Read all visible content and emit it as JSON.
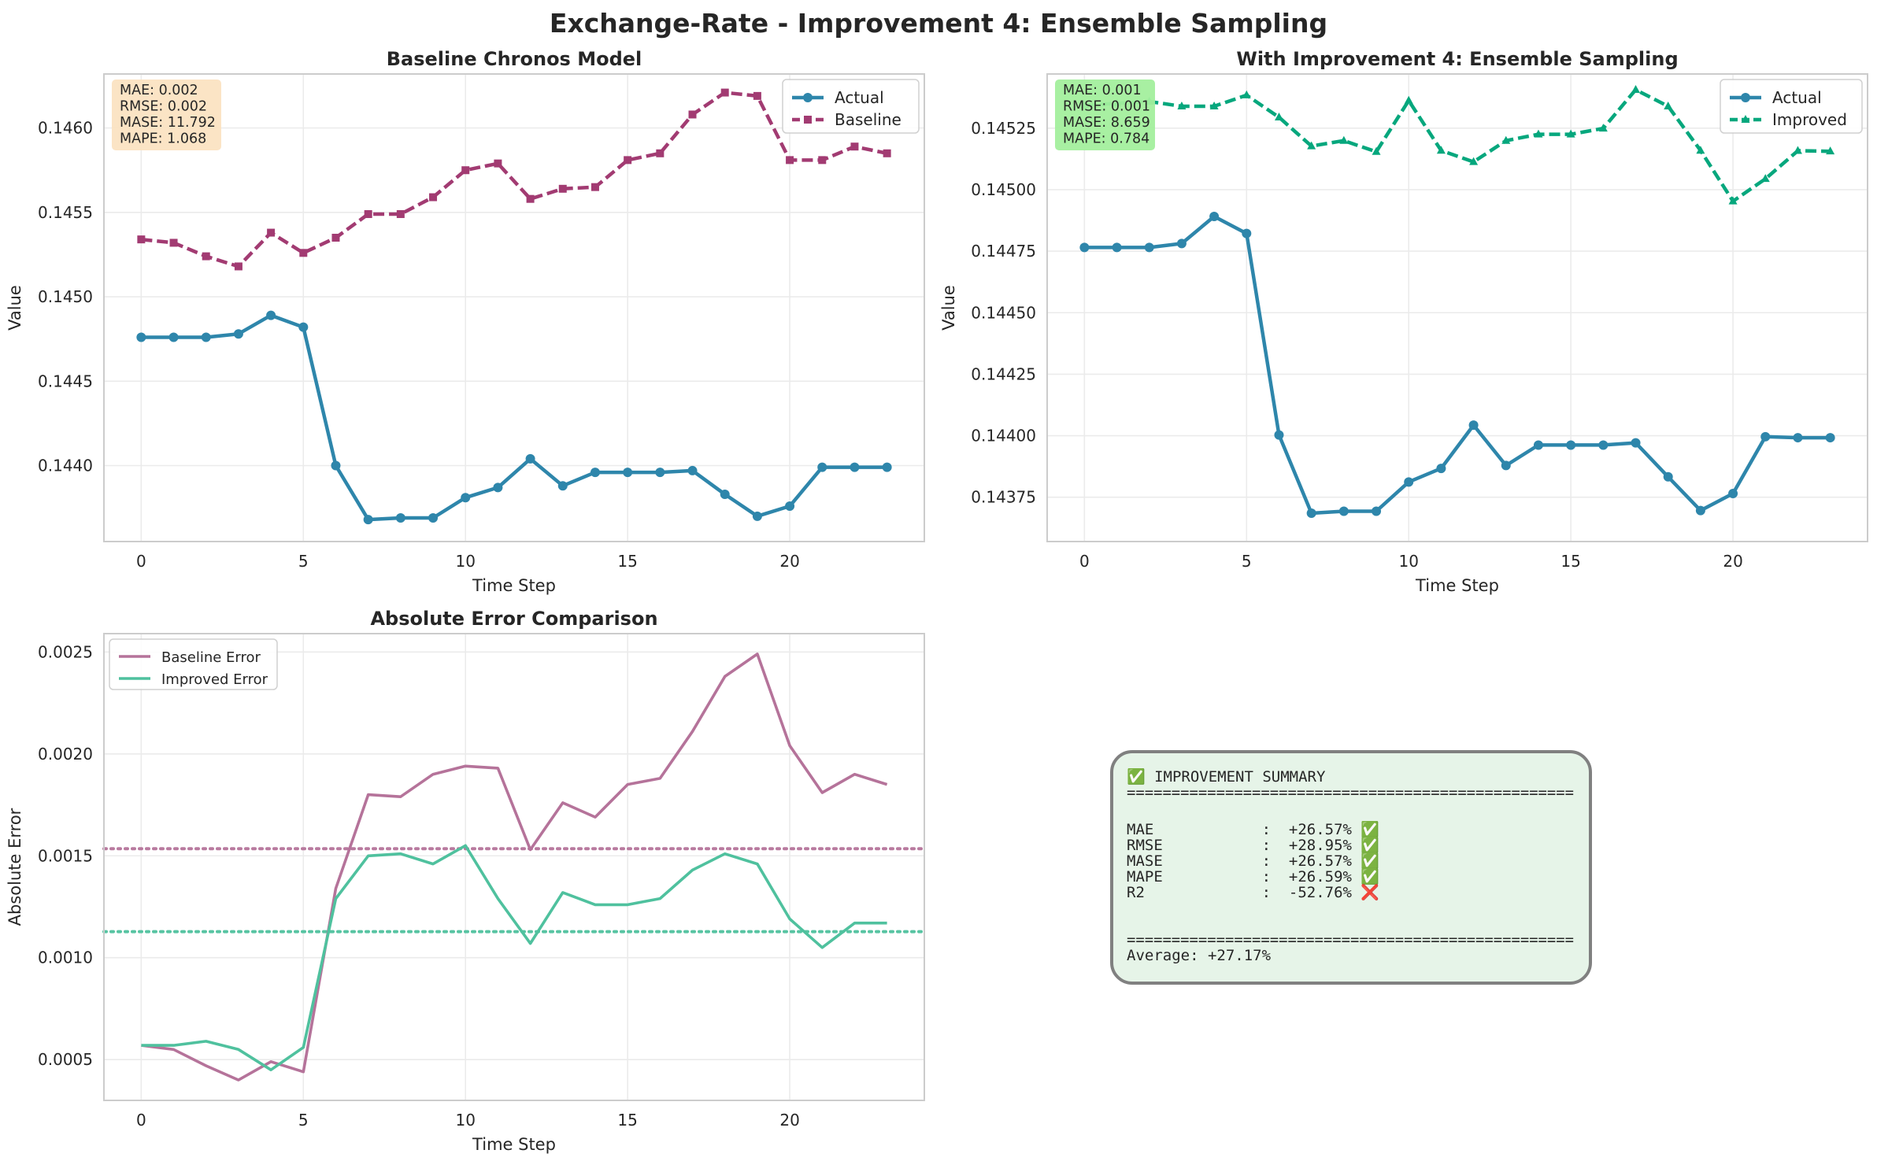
{
  "figure_title": "Exchange-Rate - Improvement 4: Ensemble Sampling",
  "colors": {
    "actual": "#2e86ab",
    "baseline": "#a23b72",
    "improved": "#06a77d",
    "baseline_error": "#b5739a",
    "improved_error": "#4fc19e",
    "grid": "#ebebeb",
    "axes_edge": "#cccccc",
    "summary_bg": "#e6f4e8",
    "summary_edge": "#808080",
    "metrics_baseline_bg": "#fbe3c2",
    "metrics_improved_bg": "#a3ef9d"
  },
  "chart_data": [
    {
      "type": "line",
      "title": "Baseline Chronos Model",
      "xlabel": "Time Step",
      "ylabel": "Value",
      "xlim": [
        -1.15,
        24.15
      ],
      "ylim": [
        0.14355,
        0.14632
      ],
      "xticks": [
        0,
        5,
        10,
        15,
        20
      ],
      "yticks": [
        0.144,
        0.1445,
        0.145,
        0.1455,
        0.146
      ],
      "ytick_labels": [
        "0.1440",
        "0.1445",
        "0.1450",
        "0.1455",
        "0.1460"
      ],
      "grid": true,
      "legend": "top-right",
      "x": [
        0,
        1,
        2,
        3,
        4,
        5,
        6,
        7,
        8,
        9,
        10,
        11,
        12,
        13,
        14,
        15,
        16,
        17,
        18,
        19,
        20,
        21,
        22,
        23
      ],
      "series": [
        {
          "name": "Actual",
          "style": "solid",
          "marker": "circle",
          "color_key": "actual",
          "values": [
            0.14476,
            0.14476,
            0.14476,
            0.14478,
            0.14489,
            0.14482,
            0.144,
            0.14368,
            0.14369,
            0.14369,
            0.14381,
            0.14387,
            0.14404,
            0.14388,
            0.14396,
            0.14396,
            0.14396,
            0.14397,
            0.14383,
            0.1437,
            0.14376,
            0.14399,
            0.14399,
            0.14399
          ]
        },
        {
          "name": "Baseline",
          "style": "dashed",
          "marker": "square",
          "color_key": "baseline",
          "values": [
            0.14534,
            0.14532,
            0.14524,
            0.14518,
            0.14538,
            0.14526,
            0.14535,
            0.14549,
            0.14549,
            0.14559,
            0.14575,
            0.14579,
            0.14558,
            0.14564,
            0.14565,
            0.14581,
            0.14585,
            0.14608,
            0.14621,
            0.14619,
            0.14581,
            0.14581,
            0.14589,
            0.14585
          ]
        }
      ],
      "metrics_box": [
        "MAE: 0.002",
        "RMSE: 0.002",
        "MASE: 11.792",
        "MAPE: 1.068"
      ]
    },
    {
      "type": "line",
      "title": "With Improvement 4: Ensemble Sampling",
      "xlabel": "Time Step",
      "ylabel": "Value",
      "xlim": [
        -1.15,
        24.15
      ],
      "ylim": [
        0.14357,
        0.14547
      ],
      "xticks": [
        0,
        5,
        10,
        15,
        20
      ],
      "yticks": [
        0.14375,
        0.144,
        0.14425,
        0.1445,
        0.14475,
        0.145,
        0.14525
      ],
      "ytick_labels": [
        "0.14375",
        "0.14400",
        "0.14425",
        "0.14450",
        "0.14475",
        "0.14500",
        "0.14525"
      ],
      "grid": true,
      "legend": "top-right",
      "x": [
        0,
        1,
        2,
        3,
        4,
        5,
        6,
        7,
        8,
        9,
        10,
        11,
        12,
        13,
        14,
        15,
        16,
        17,
        18,
        19,
        20,
        21,
        22,
        23
      ],
      "series": [
        {
          "name": "Actual",
          "style": "solid",
          "marker": "circle",
          "color_key": "actual",
          "values": [
            0.144765,
            0.144765,
            0.144765,
            0.144781,
            0.144891,
            0.144822,
            0.144003,
            0.143685,
            0.143693,
            0.143693,
            0.143812,
            0.143867,
            0.144043,
            0.143879,
            0.143962,
            0.143962,
            0.143962,
            0.143971,
            0.143833,
            0.143696,
            0.143765,
            0.143996,
            0.143992,
            0.143992
          ]
        },
        {
          "name": "Improved",
          "style": "dashed",
          "marker": "triangle",
          "color_key": "improved",
          "values": [
            0.145342,
            0.145351,
            0.145358,
            0.145339,
            0.145339,
            0.145384,
            0.145294,
            0.145177,
            0.145199,
            0.145154,
            0.145362,
            0.145159,
            0.145113,
            0.145199,
            0.145225,
            0.145225,
            0.145249,
            0.145406,
            0.145339,
            0.145159,
            0.144953,
            0.145044,
            0.145158,
            0.145156
          ]
        }
      ],
      "metrics_box": [
        "MAE: 0.001",
        "RMSE: 0.001",
        "MASE: 8.659",
        "MAPE: 0.784"
      ]
    },
    {
      "type": "line",
      "title": "Absolute Error Comparison",
      "xlabel": "Time Step",
      "ylabel": "Absolute Error",
      "xlim": [
        -1.15,
        24.15
      ],
      "ylim": [
        0.0003,
        0.00259
      ],
      "xticks": [
        0,
        5,
        10,
        15,
        20
      ],
      "yticks": [
        0.0005,
        0.001,
        0.0015,
        0.002,
        0.0025
      ],
      "ytick_labels": [
        "0.0005",
        "0.0010",
        "0.0015",
        "0.0020",
        "0.0025"
      ],
      "grid": true,
      "legend": "top-left",
      "x": [
        0,
        1,
        2,
        3,
        4,
        5,
        6,
        7,
        8,
        9,
        10,
        11,
        12,
        13,
        14,
        15,
        16,
        17,
        18,
        19,
        20,
        21,
        22,
        23
      ],
      "series": [
        {
          "name": "Baseline Error",
          "style": "solid",
          "marker": "none",
          "color_key": "baseline_error",
          "values": [
            0.00057,
            0.00055,
            0.00047,
            0.0004,
            0.00049,
            0.00044,
            0.00134,
            0.0018,
            0.00179,
            0.0019,
            0.00194,
            0.00193,
            0.00153,
            0.00176,
            0.00169,
            0.00185,
            0.00188,
            0.00211,
            0.00238,
            0.00249,
            0.00204,
            0.00181,
            0.0019,
            0.00185
          ],
          "mean": 0.001535
        },
        {
          "name": "Improved Error",
          "style": "solid",
          "marker": "none",
          "color_key": "improved_error",
          "values": [
            0.00057,
            0.00057,
            0.00059,
            0.00055,
            0.00045,
            0.00056,
            0.00129,
            0.0015,
            0.00151,
            0.00146,
            0.00155,
            0.00129,
            0.00107,
            0.00132,
            0.00126,
            0.00126,
            0.00129,
            0.00143,
            0.00151,
            0.00146,
            0.00119,
            0.00105,
            0.00117,
            0.00117
          ],
          "mean": 0.001128
        }
      ]
    }
  ],
  "summary": {
    "title": "✅ IMPROVEMENT SUMMARY",
    "rule": "==================================================",
    "rows": [
      "MAE            :  +26.57% ✅",
      "RMSE           :  +28.95% ✅",
      "MASE           :  +26.57% ✅",
      "MAPE           :  +26.59% ✅",
      "R2             :  -52.76% ❌"
    ],
    "average": "Average: +27.17%"
  }
}
